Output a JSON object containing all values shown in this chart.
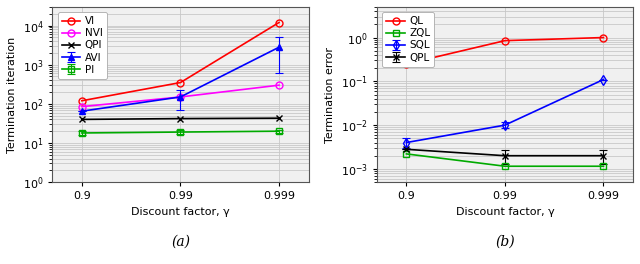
{
  "x_labels": [
    "0.9",
    "0.99",
    "0.999"
  ],
  "plot_a": {
    "title": "(a)",
    "ylabel": "Termination iteration",
    "xlabel": "Discount factor, γ",
    "ylim": [
      1,
      30000
    ],
    "series": [
      {
        "label": "VI",
        "color": "#ff0000",
        "marker": "o",
        "markerfacecolor": "none",
        "linestyle": "-",
        "y": [
          120,
          350,
          12000
        ],
        "yerr_lo": [
          0,
          0,
          0
        ],
        "yerr_hi": [
          0,
          0,
          0
        ]
      },
      {
        "label": "NVI",
        "color": "#ff00ff",
        "marker": "o",
        "markerfacecolor": "none",
        "linestyle": "-",
        "y": [
          85,
          150,
          300
        ],
        "yerr_lo": [
          0,
          0,
          0
        ],
        "yerr_hi": [
          0,
          0,
          0
        ]
      },
      {
        "label": "AVI",
        "color": "#0000ff",
        "marker": "^",
        "markerfacecolor": "blue",
        "linestyle": "-",
        "y": [
          65,
          150,
          2800
        ],
        "yerr_lo": [
          0,
          80,
          2200
        ],
        "yerr_hi": [
          0,
          80,
          2200
        ]
      },
      {
        "label": "QPI",
        "color": "#000000",
        "marker": "x",
        "markerfacecolor": "black",
        "linestyle": "-",
        "y": [
          40,
          42,
          43
        ],
        "yerr_lo": [
          0,
          0,
          0
        ],
        "yerr_hi": [
          0,
          0,
          0
        ]
      },
      {
        "label": "PI",
        "color": "#00aa00",
        "marker": "s",
        "markerfacecolor": "none",
        "linestyle": "-",
        "y": [
          18,
          19,
          20
        ],
        "yerr_lo": [
          2,
          2,
          2
        ],
        "yerr_hi": [
          2,
          2,
          2
        ]
      }
    ]
  },
  "plot_b": {
    "title": "(b)",
    "ylabel": "Termination error",
    "xlabel": "Discount factor, γ",
    "ylim": [
      0.0005,
      5
    ],
    "series": [
      {
        "label": "QL",
        "color": "#ff0000",
        "marker": "o",
        "markerfacecolor": "none",
        "linestyle": "-",
        "y": [
          0.25,
          0.85,
          1.0
        ],
        "yerr_lo": [
          0,
          0,
          0
        ],
        "yerr_hi": [
          0,
          0,
          0
        ]
      },
      {
        "label": "SQL",
        "color": "#0000ff",
        "marker": "d",
        "markerfacecolor": "none",
        "linestyle": "-",
        "y": [
          0.004,
          0.01,
          0.11
        ],
        "yerr_lo": [
          0.001,
          0.0015,
          0
        ],
        "yerr_hi": [
          0.001,
          0.0015,
          0
        ]
      },
      {
        "label": "QPL",
        "color": "#000000",
        "marker": "x",
        "markerfacecolor": "black",
        "linestyle": "-",
        "y": [
          0.0028,
          0.002,
          0.002
        ],
        "yerr_lo": [
          0,
          0.0007,
          0.0007
        ],
        "yerr_hi": [
          0,
          0.0007,
          0.0007
        ]
      },
      {
        "label": "ZQL",
        "color": "#00aa00",
        "marker": "s",
        "markerfacecolor": "none",
        "linestyle": "-",
        "y": [
          0.0022,
          0.00115,
          0.00115
        ],
        "yerr_lo": [
          0,
          0,
          0
        ],
        "yerr_hi": [
          0,
          0,
          0
        ]
      }
    ]
  },
  "grid_color": "#c8c8c8",
  "bg_color": "#f0f0f0",
  "font_size": 8,
  "label_font_size": 8,
  "legend_font_size": 7.5,
  "tick_font_size": 8
}
